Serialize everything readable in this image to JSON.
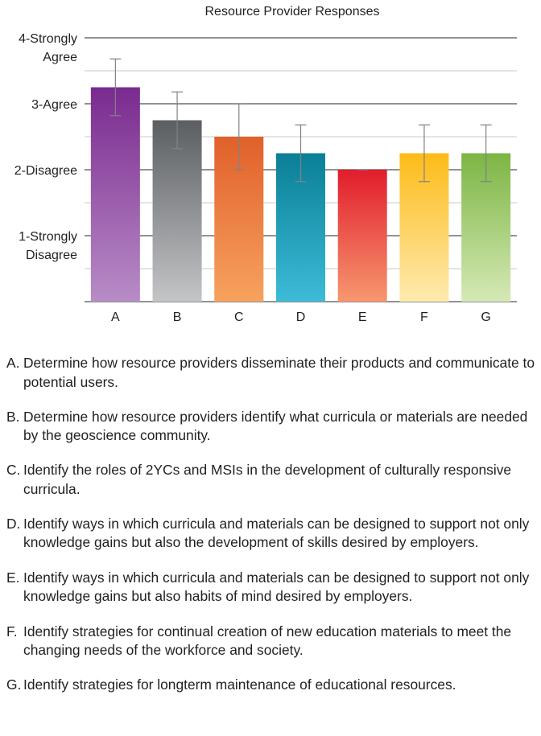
{
  "chart_data": {
    "type": "bar",
    "title": "Resource Provider Responses",
    "categories": [
      "A",
      "B",
      "C",
      "D",
      "E",
      "F",
      "G"
    ],
    "values": [
      3.25,
      2.75,
      2.5,
      2.25,
      2.0,
      2.25,
      2.25
    ],
    "error": [
      0.43,
      0.43,
      0.5,
      0.43,
      0.0,
      0.43,
      0.43
    ],
    "ylim": [
      0,
      4
    ],
    "ytick_values": [
      1,
      2,
      3,
      4
    ],
    "ytick_labels": [
      [
        "1-Strongly",
        "Disagree"
      ],
      [
        "2-Disagree"
      ],
      [
        "3-Agree"
      ],
      [
        "4-Strongly",
        "Agree"
      ]
    ],
    "xlabel": "",
    "ylabel": "",
    "grid": true,
    "colors": [
      [
        "#7a2a8f",
        "#b88cc6"
      ],
      [
        "#5b5e61",
        "#c3c5c7"
      ],
      [
        "#e0602a",
        "#f7a25e"
      ],
      [
        "#0a7f96",
        "#3dbbd8"
      ],
      [
        "#e11d2c",
        "#f7976f"
      ],
      [
        "#fdbb18",
        "#feeab0"
      ],
      [
        "#7cb544",
        "#d5e9b5"
      ]
    ]
  },
  "legend": [
    {
      "key": "A.",
      "text": "Determine how resource providers disseminate their products and communicate to potential users."
    },
    {
      "key": "B.",
      "text": "Determine how resource providers identify what curricula or materials are needed by the geoscience community."
    },
    {
      "key": "C.",
      "text": "Identify the roles of 2YCs and MSIs in the development of culturally responsive curricula."
    },
    {
      "key": "D.",
      "text": "Identify ways in which curricula and materials can be designed to support not only knowledge gains but also the development of skills desired by employers."
    },
    {
      "key": "E.",
      "text": "Identify ways in which curricula and materials can be designed to support not only knowledge gains but also habits of mind desired by employers."
    },
    {
      "key": "F.",
      "text": "Identify strategies for continual creation of new education materials to meet the changing needs of the workforce and society."
    },
    {
      "key": "G.",
      "text": "Identify strategies for longterm maintenance of educational resources."
    }
  ]
}
